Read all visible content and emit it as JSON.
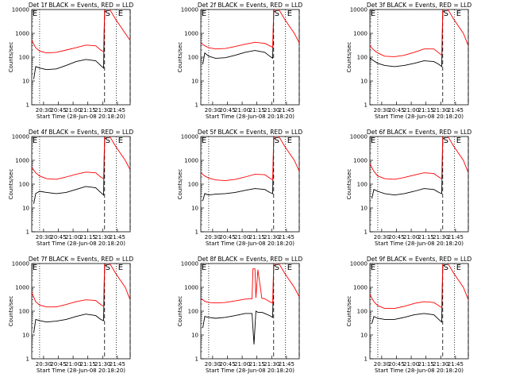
{
  "page": {
    "background": "#ffffff"
  },
  "panels_common": {
    "ylabel": "Counts/sec",
    "xlabel": "Start Time (28-Jun-08 20:18:20)",
    "x_ticks": [
      "20:30",
      "20:45",
      "21:00",
      "21:15",
      "21:30",
      "21:45"
    ],
    "y_ticks": [
      "1",
      "10",
      "100",
      "1000",
      "10000"
    ],
    "colors": {
      "events": "#000000",
      "lld": "#ff0000"
    }
  },
  "chart_data": [
    {
      "type": "line",
      "title": "Det 1f BLACK = Events, RED = LLD",
      "ylim": [
        1,
        10000
      ],
      "log_y": true,
      "marker_labels": [
        {
          "text": "E",
          "x_min": 0
        },
        {
          "text": "S",
          "x_min": 74
        },
        {
          "text": "E",
          "x_min": 87
        }
      ],
      "lines": [
        {
          "style": "dotted",
          "x_min": 8
        },
        {
          "style": "dashed",
          "x_min": 74
        },
        {
          "style": "dotted",
          "x_min": 86
        },
        {
          "style": "dashed",
          "x_min": 100
        }
      ],
      "series": [
        {
          "name": "Events",
          "color": "#000000",
          "x": [
            2,
            4,
            8,
            15,
            25,
            35,
            45,
            55,
            65,
            70,
            73,
            74,
            76
          ],
          "y": [
            12,
            40,
            35,
            30,
            32,
            45,
            65,
            80,
            70,
            45,
            35,
            8000,
            9000
          ]
        },
        {
          "name": "LLD",
          "color": "#ff0000",
          "x": [
            0,
            4,
            8,
            15,
            25,
            35,
            45,
            55,
            65,
            70,
            73,
            74,
            76,
            80,
            85,
            90,
            95,
            100
          ],
          "y": [
            500,
            250,
            180,
            150,
            160,
            200,
            250,
            320,
            300,
            200,
            170,
            9000,
            12000,
            9000,
            4000,
            2000,
            1000,
            500
          ]
        }
      ]
    },
    {
      "type": "line",
      "title": "Det 2f BLACK = Events, RED = LLD",
      "ylim": [
        1,
        10000
      ],
      "log_y": true,
      "marker_labels": [
        {
          "text": "E",
          "x_min": 0
        },
        {
          "text": "S",
          "x_min": 74
        },
        {
          "text": "E",
          "x_min": 87
        }
      ],
      "lines": [
        {
          "style": "dotted",
          "x_min": 8
        },
        {
          "style": "dashed",
          "x_min": 74
        },
        {
          "style": "dotted",
          "x_min": 86
        },
        {
          "style": "dashed",
          "x_min": 100
        }
      ],
      "series": [
        {
          "name": "Events",
          "color": "#000000",
          "x": [
            2,
            4,
            8,
            15,
            25,
            35,
            45,
            55,
            65,
            70,
            73,
            74,
            76
          ],
          "y": [
            50,
            150,
            110,
            90,
            95,
            120,
            160,
            190,
            160,
            110,
            90,
            8000,
            9000
          ]
        },
        {
          "name": "LLD",
          "color": "#ff0000",
          "x": [
            0,
            4,
            8,
            15,
            25,
            35,
            45,
            55,
            65,
            70,
            73,
            74,
            76,
            80,
            85,
            90,
            95,
            100
          ],
          "y": [
            400,
            300,
            250,
            220,
            230,
            280,
            350,
            420,
            380,
            300,
            260,
            9000,
            12000,
            9000,
            4000,
            2000,
            1000,
            400
          ]
        }
      ]
    },
    {
      "type": "line",
      "title": "Det 3f BLACK = Events, RED = LLD",
      "ylim": [
        1,
        10000
      ],
      "log_y": true,
      "marker_labels": [
        {
          "text": "E",
          "x_min": 0
        },
        {
          "text": "S",
          "x_min": 74
        },
        {
          "text": "E",
          "x_min": 87
        }
      ],
      "lines": [
        {
          "style": "dotted",
          "x_min": 8
        },
        {
          "style": "dashed",
          "x_min": 74
        },
        {
          "style": "dotted",
          "x_min": 86
        },
        {
          "style": "dashed",
          "x_min": 100
        }
      ],
      "series": [
        {
          "name": "Events",
          "color": "#000000",
          "x": [
            0,
            4,
            8,
            15,
            25,
            35,
            45,
            55,
            65,
            70,
            73,
            74,
            76
          ],
          "y": [
            90,
            70,
            55,
            45,
            40,
            45,
            55,
            70,
            65,
            50,
            40,
            8000,
            9000
          ]
        },
        {
          "name": "LLD",
          "color": "#ff0000",
          "x": [
            0,
            4,
            8,
            15,
            25,
            35,
            45,
            55,
            65,
            70,
            73,
            74,
            76,
            80,
            85,
            90,
            95,
            100
          ],
          "y": [
            300,
            200,
            150,
            110,
            105,
            120,
            160,
            220,
            220,
            150,
            120,
            9000,
            12000,
            9000,
            4000,
            2000,
            1000,
            300
          ]
        }
      ]
    },
    {
      "type": "line",
      "title": "Det 4f BLACK = Events, RED = LLD",
      "ylim": [
        1,
        10000
      ],
      "log_y": true,
      "marker_labels": [
        {
          "text": "E",
          "x_min": 0
        },
        {
          "text": "S",
          "x_min": 74
        },
        {
          "text": "E",
          "x_min": 87
        }
      ],
      "lines": [
        {
          "style": "dotted",
          "x_min": 8
        },
        {
          "style": "dashed",
          "x_min": 74
        },
        {
          "style": "dotted",
          "x_min": 86
        },
        {
          "style": "dashed",
          "x_min": 100
        }
      ],
      "series": [
        {
          "name": "Events",
          "color": "#000000",
          "x": [
            2,
            4,
            8,
            15,
            25,
            35,
            45,
            55,
            65,
            70,
            73,
            74,
            76
          ],
          "y": [
            15,
            40,
            50,
            45,
            40,
            45,
            60,
            80,
            70,
            45,
            35,
            8000,
            9000
          ]
        },
        {
          "name": "LLD",
          "color": "#ff0000",
          "x": [
            0,
            4,
            8,
            15,
            25,
            35,
            45,
            55,
            65,
            70,
            73,
            74,
            76,
            80,
            85,
            90,
            95,
            100
          ],
          "y": [
            500,
            300,
            220,
            170,
            160,
            200,
            260,
            320,
            300,
            200,
            170,
            9000,
            12000,
            9000,
            4000,
            2000,
            1000,
            400
          ]
        }
      ]
    },
    {
      "type": "line",
      "title": "Det 5f BLACK = Events, RED = LLD",
      "ylim": [
        1,
        10000
      ],
      "log_y": true,
      "marker_labels": [
        {
          "text": "E",
          "x_min": 0
        },
        {
          "text": "S",
          "x_min": 74
        },
        {
          "text": "E",
          "x_min": 87
        }
      ],
      "lines": [
        {
          "style": "dotted",
          "x_min": 8
        },
        {
          "style": "dashed",
          "x_min": 74
        },
        {
          "style": "dotted",
          "x_min": 86
        },
        {
          "style": "dashed",
          "x_min": 100
        }
      ],
      "series": [
        {
          "name": "Events",
          "color": "#000000",
          "x": [
            2,
            4,
            8,
            15,
            25,
            35,
            45,
            55,
            65,
            70,
            73,
            74,
            76
          ],
          "y": [
            20,
            40,
            35,
            38,
            40,
            45,
            55,
            65,
            60,
            45,
            40,
            8000,
            9000
          ]
        },
        {
          "name": "LLD",
          "color": "#ff0000",
          "x": [
            0,
            4,
            8,
            15,
            25,
            35,
            45,
            55,
            65,
            70,
            73,
            74,
            76,
            80,
            85,
            90,
            95,
            100
          ],
          "y": [
            300,
            220,
            180,
            150,
            140,
            160,
            200,
            260,
            250,
            180,
            150,
            9000,
            12000,
            9000,
            4000,
            2000,
            1000,
            350
          ]
        }
      ]
    },
    {
      "type": "line",
      "title": "Det 6f BLACK = Events, RED = LLD",
      "ylim": [
        1,
        10000
      ],
      "log_y": true,
      "marker_labels": [
        {
          "text": "E",
          "x_min": 0
        },
        {
          "text": "S",
          "x_min": 74
        },
        {
          "text": "E",
          "x_min": 87
        }
      ],
      "lines": [
        {
          "style": "dotted",
          "x_min": 8
        },
        {
          "style": "dashed",
          "x_min": 74
        },
        {
          "style": "dotted",
          "x_min": 86
        },
        {
          "style": "dashed",
          "x_min": 100
        }
      ],
      "series": [
        {
          "name": "Events",
          "color": "#000000",
          "x": [
            2,
            4,
            8,
            15,
            25,
            35,
            45,
            55,
            65,
            70,
            73,
            74,
            76
          ],
          "y": [
            25,
            60,
            50,
            40,
            35,
            40,
            50,
            65,
            60,
            45,
            40,
            8000,
            9000
          ]
        },
        {
          "name": "LLD",
          "color": "#ff0000",
          "x": [
            0,
            4,
            8,
            15,
            25,
            35,
            45,
            55,
            65,
            70,
            73,
            74,
            76,
            80,
            85,
            90,
            95,
            100
          ],
          "y": [
            700,
            350,
            220,
            170,
            160,
            190,
            240,
            300,
            280,
            200,
            170,
            9000,
            12000,
            9000,
            4000,
            2000,
            1000,
            300
          ]
        }
      ]
    },
    {
      "type": "line",
      "title": "Det 7f BLACK = Events, RED = LLD",
      "ylim": [
        1,
        10000
      ],
      "log_y": true,
      "marker_labels": [
        {
          "text": "E",
          "x_min": 0
        },
        {
          "text": "S",
          "x_min": 74
        },
        {
          "text": "E",
          "x_min": 87
        }
      ],
      "lines": [
        {
          "style": "dotted",
          "x_min": 8
        },
        {
          "style": "dashed",
          "x_min": 74
        },
        {
          "style": "dotted",
          "x_min": 86
        },
        {
          "style": "dashed",
          "x_min": 100
        }
      ],
      "series": [
        {
          "name": "Events",
          "color": "#000000",
          "x": [
            2,
            4,
            8,
            15,
            25,
            35,
            45,
            55,
            65,
            70,
            73,
            74,
            76
          ],
          "y": [
            12,
            45,
            40,
            35,
            38,
            45,
            60,
            75,
            65,
            45,
            40,
            8000,
            9000
          ]
        },
        {
          "name": "LLD",
          "color": "#ff0000",
          "x": [
            0,
            4,
            8,
            15,
            25,
            35,
            45,
            55,
            65,
            70,
            73,
            74,
            76,
            80,
            85,
            90,
            95,
            100
          ],
          "y": [
            600,
            250,
            180,
            150,
            150,
            190,
            250,
            300,
            280,
            190,
            160,
            9000,
            12000,
            9000,
            4000,
            2000,
            1000,
            300
          ]
        }
      ]
    },
    {
      "type": "line",
      "title": "Det 8f BLACK = Events, RED = LLD",
      "ylim": [
        1,
        10000
      ],
      "log_y": true,
      "marker_labels": [
        {
          "text": "E",
          "x_min": 0
        },
        {
          "text": "S",
          "x_min": 74
        },
        {
          "text": "E",
          "x_min": 87
        }
      ],
      "lines": [
        {
          "style": "dotted",
          "x_min": 8
        },
        {
          "style": "dashed",
          "x_min": 74
        },
        {
          "style": "dotted",
          "x_min": 86
        },
        {
          "style": "dashed",
          "x_min": 100
        }
      ],
      "series": [
        {
          "name": "Events",
          "color": "#000000",
          "x": [
            2,
            4,
            8,
            15,
            25,
            35,
            45,
            52,
            54,
            56,
            58,
            62,
            65,
            70,
            73,
            74,
            76
          ],
          "y": [
            20,
            60,
            55,
            50,
            55,
            65,
            80,
            80,
            4,
            100,
            90,
            90,
            80,
            65,
            55,
            8000,
            9000
          ]
        },
        {
          "name": "LLD",
          "color": "#ff0000",
          "x": [
            0,
            4,
            8,
            15,
            25,
            35,
            45,
            52,
            53,
            55,
            56,
            58,
            62,
            65,
            70,
            73,
            74,
            76,
            80,
            85,
            90,
            95,
            100
          ],
          "y": [
            350,
            260,
            230,
            220,
            230,
            270,
            320,
            330,
            6000,
            6000,
            360,
            5500,
            350,
            330,
            250,
            220,
            9000,
            12000,
            9000,
            4000,
            2000,
            1000,
            400
          ]
        }
      ]
    },
    {
      "type": "line",
      "title": "Det 9f BLACK = Events, RED = LLD",
      "ylim": [
        1,
        10000
      ],
      "log_y": true,
      "marker_labels": [
        {
          "text": "E",
          "x_min": 0
        },
        {
          "text": "S",
          "x_min": 74
        },
        {
          "text": "E",
          "x_min": 87
        }
      ],
      "lines": [
        {
          "style": "dotted",
          "x_min": 8
        },
        {
          "style": "dashed",
          "x_min": 74
        },
        {
          "style": "dotted",
          "x_min": 86
        },
        {
          "style": "dashed",
          "x_min": 100
        }
      ],
      "series": [
        {
          "name": "Events",
          "color": "#000000",
          "x": [
            2,
            4,
            8,
            15,
            25,
            35,
            45,
            55,
            65,
            70,
            73,
            74,
            76
          ],
          "y": [
            30,
            60,
            50,
            45,
            45,
            55,
            70,
            80,
            70,
            45,
            35,
            8000,
            9000
          ]
        },
        {
          "name": "LLD",
          "color": "#ff0000",
          "x": [
            0,
            4,
            8,
            15,
            25,
            35,
            45,
            55,
            65,
            70,
            73,
            74,
            76,
            80,
            85,
            90,
            95,
            100
          ],
          "y": [
            500,
            250,
            170,
            130,
            130,
            160,
            210,
            250,
            230,
            170,
            140,
            9000,
            12000,
            9000,
            4000,
            2000,
            1000,
            300
          ]
        }
      ]
    }
  ]
}
